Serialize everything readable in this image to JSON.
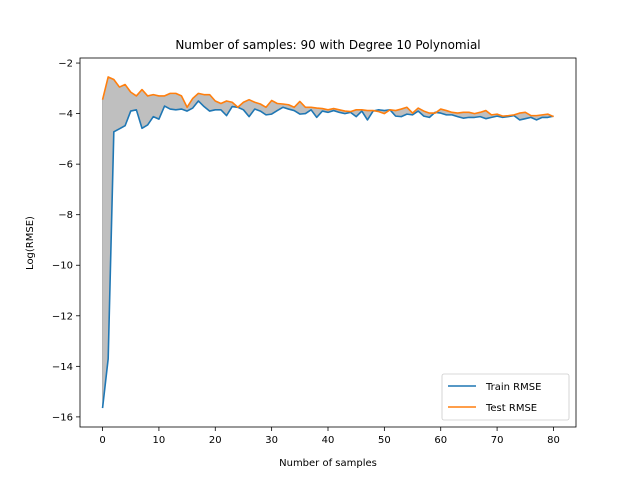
{
  "chart_data": {
    "type": "line",
    "title": "Number of samples: 90 with Degree 10 Polynomial",
    "xlabel": "Number of samples",
    "ylabel": "Log(RMSE)",
    "xlim": [
      -4,
      84
    ],
    "ylim": [
      -16.4,
      -1.8
    ],
    "xticks": [
      0,
      10,
      20,
      30,
      40,
      50,
      60,
      70,
      80
    ],
    "yticks": [
      -16,
      -14,
      -12,
      -10,
      -8,
      -6,
      -4,
      -2
    ],
    "grid": false,
    "legend_position": "lower-right",
    "fill_between": {
      "color": "#bfbfbf"
    },
    "series": [
      {
        "name": "Train RMSE",
        "color": "#1f77b4",
        "values": [
          -15.65,
          -13.7,
          -4.72,
          -4.6,
          -4.48,
          -3.9,
          -3.85,
          -4.58,
          -4.45,
          -4.12,
          -4.22,
          -3.7,
          -3.82,
          -3.85,
          -3.82,
          -3.9,
          -3.78,
          -3.5,
          -3.72,
          -3.9,
          -3.85,
          -3.85,
          -4.08,
          -3.72,
          -3.75,
          -3.85,
          -4.12,
          -3.82,
          -3.9,
          -4.05,
          -4.02,
          -3.88,
          -3.75,
          -3.82,
          -3.88,
          -4.02,
          -4.0,
          -3.85,
          -4.15,
          -3.9,
          -3.95,
          -3.88,
          -3.95,
          -4.0,
          -3.95,
          -4.12,
          -3.9,
          -4.25,
          -3.9,
          -3.85,
          -3.88,
          -3.85,
          -4.1,
          -4.12,
          -4.02,
          -4.05,
          -3.9,
          -4.1,
          -4.15,
          -3.95,
          -3.98,
          -4.05,
          -4.05,
          -4.12,
          -4.18,
          -4.15,
          -4.15,
          -4.12,
          -4.2,
          -4.15,
          -4.1,
          -4.15,
          -4.12,
          -4.08,
          -4.25,
          -4.2,
          -4.15,
          -4.25,
          -4.15,
          -4.15,
          -4.1
        ]
      },
      {
        "name": "Test RMSE",
        "color": "#ff7f0e",
        "values": [
          -3.45,
          -2.55,
          -2.65,
          -2.95,
          -2.85,
          -3.15,
          -3.3,
          -3.05,
          -3.3,
          -3.25,
          -3.3,
          -3.3,
          -3.2,
          -3.2,
          -3.3,
          -3.75,
          -3.4,
          -3.2,
          -3.25,
          -3.25,
          -3.5,
          -3.6,
          -3.5,
          -3.55,
          -3.75,
          -3.55,
          -3.45,
          -3.55,
          -3.62,
          -3.75,
          -3.48,
          -3.6,
          -3.62,
          -3.65,
          -3.75,
          -3.52,
          -3.75,
          -3.75,
          -3.78,
          -3.8,
          -3.85,
          -3.8,
          -3.85,
          -3.9,
          -3.92,
          -3.85,
          -3.85,
          -3.88,
          -3.88,
          -3.92,
          -4.0,
          -3.85,
          -3.88,
          -3.82,
          -3.75,
          -3.98,
          -3.78,
          -3.9,
          -3.98,
          -3.98,
          -3.82,
          -3.88,
          -3.95,
          -3.98,
          -3.95,
          -3.95,
          -4.0,
          -3.95,
          -3.88,
          -4.05,
          -4.02,
          -4.1,
          -4.08,
          -4.05,
          -3.98,
          -3.95,
          -4.08,
          -4.08,
          -4.05,
          -4.02,
          -4.12
        ]
      }
    ]
  }
}
